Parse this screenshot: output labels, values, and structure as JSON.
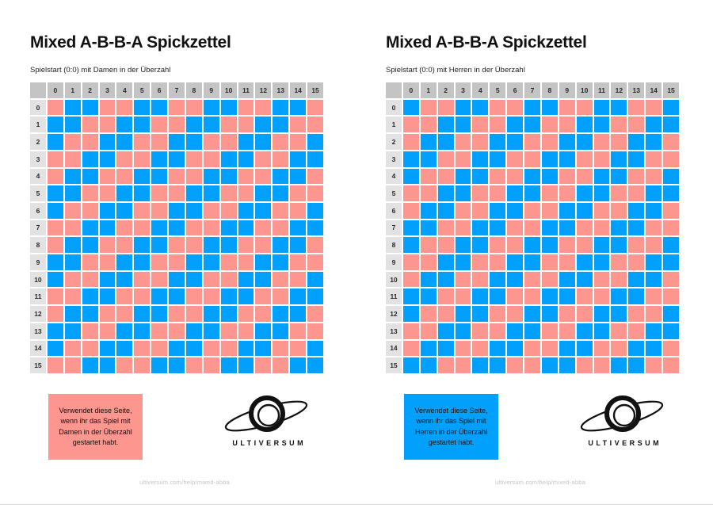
{
  "colors": {
    "damen": "#FC968E",
    "herren": "#00A0FC",
    "column_header_bg": "#C4C4C4",
    "row_header_bg": "#E2E2E2",
    "divider": "#DCDCDC"
  },
  "panels": [
    {
      "title": "Mixed A-B-B-A Spickzettel",
      "subtitle": "Spielstart (0:0) mit Damen in der Überzahl",
      "note": "Verwendet diese Seite,\nwenn ihr das Spiel mit\nDamen in der Überzahl\ngestartet habt.",
      "note_bg": "#FC968E",
      "brand": "ULTIVERSUM",
      "footer_url": "ultiversum.com/help/mixed-abba",
      "grid": {
        "col_headers": [
          "0",
          "1",
          "2",
          "3",
          "4",
          "5",
          "6",
          "7",
          "8",
          "9",
          "10",
          "11",
          "12",
          "13",
          "14",
          "15"
        ],
        "row_headers": [
          "0",
          "1",
          "2",
          "3",
          "4",
          "5",
          "6",
          "7",
          "8",
          "9",
          "10",
          "11",
          "12",
          "13",
          "14",
          "15"
        ],
        "cell_legend": {
          "D": "Damen in der Überzahl",
          "H": "Herren in der Überzahl"
        },
        "rows": [
          "DHHDDHHDDHHDDHHD",
          "HHDDHHDDHHDDHHDD",
          "HDDHHDDHHDDHHDDH",
          "DDHHDDHHDDHHDDHH",
          "DHHDDHHDDHHDDHHD",
          "HHDDHHDDHHDDHHDD",
          "HDDHHDDHHDDHHDDH",
          "DDHHDDHHDDHHDDHH",
          "DHHDDHHDDHHDDHHD",
          "HHDDHHDDHHDDHHDD",
          "HDDHHDDHHDDHHDDH",
          "DDHHDDHHDDHHDDHH",
          "DHHDDHHDDHHDDHHD",
          "HHDDHHDDHHDDHHDD",
          "HDDHHDDHHDDHHDDH",
          "DDHHDDHHDDHHDDHH"
        ]
      }
    },
    {
      "title": "Mixed A-B-B-A Spickzettel",
      "subtitle": "Spielstart (0:0) mit Herren in der Überzahl",
      "note": "Verwendet diese Seite,\nwenn ihr das Spiel mit\nHerren in der Überzahl\ngestartet habt.",
      "note_bg": "#00A0FC",
      "brand": "ULTIVERSUM",
      "footer_url": "ultiversum.com/help/mixed-abba",
      "grid": {
        "col_headers": [
          "0",
          "1",
          "2",
          "3",
          "4",
          "5",
          "6",
          "7",
          "8",
          "9",
          "10",
          "11",
          "12",
          "13",
          "14",
          "15"
        ],
        "row_headers": [
          "0",
          "1",
          "2",
          "3",
          "4",
          "5",
          "6",
          "7",
          "8",
          "9",
          "10",
          "11",
          "12",
          "13",
          "14",
          "15"
        ],
        "cell_legend": {
          "D": "Damen in der Überzahl",
          "H": "Herren in der Überzahl"
        },
        "rows": [
          "HDDHHDDHHDDHHDDH",
          "DDHHDDHHDDHHDDHH",
          "DHHDDHHDDHHDDHHD",
          "HHDDHHDDHHDDHHDD",
          "HDDHHDDHHDDHHDDH",
          "DDHHDDHHDDHHDDHH",
          "DHHDDHHDDHHDDHHD",
          "HHDDHHDDHHDDHHDD",
          "HDDHHDDHHDDHHDDH",
          "DDHHDDHHDDHHDDHH",
          "DHHDDHHDDHHDDHHD",
          "HHDDHHDDHHDDHHDD",
          "HDDHHDDHHDDHHDDH",
          "DDHHDDHHDDHHDDHH",
          "DHHDDHHDDHHDDHHD",
          "HHDDHHDDHHDDHHDD"
        ]
      }
    }
  ]
}
